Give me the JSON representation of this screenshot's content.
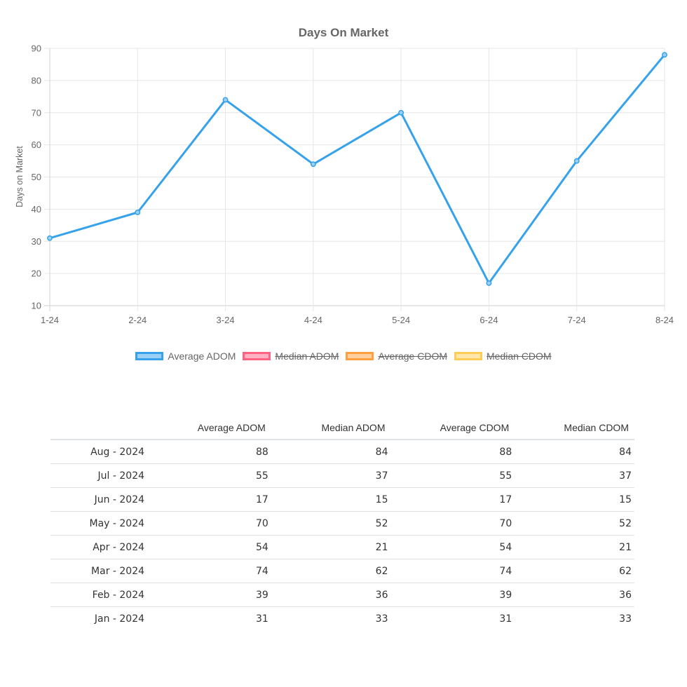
{
  "chart_data": {
    "type": "line",
    "title": "Days On Market",
    "ylabel": "Days on Market",
    "xlabel": "",
    "categories": [
      "1-24",
      "2-24",
      "3-24",
      "4-24",
      "5-24",
      "6-24",
      "7-24",
      "8-24"
    ],
    "ylim": [
      10,
      90
    ],
    "yticks": [
      "10",
      "20",
      "30",
      "40",
      "50",
      "60",
      "70",
      "80",
      "90"
    ],
    "grid": true,
    "legend_position": "bottom",
    "series": [
      {
        "name": "Average ADOM",
        "values": [
          31,
          39,
          74,
          54,
          70,
          17,
          55,
          88
        ],
        "color": "#36a2eb",
        "fill": "#9ad0f5",
        "hidden": false
      },
      {
        "name": "Median ADOM",
        "values": [
          33,
          36,
          62,
          21,
          52,
          15,
          37,
          84
        ],
        "color": "#ff6384",
        "fill": "#ffb1c1",
        "hidden": true
      },
      {
        "name": "Average CDOM",
        "values": [
          31,
          39,
          74,
          54,
          70,
          17,
          55,
          88
        ],
        "color": "#ff9f40",
        "fill": "#ffcf9f",
        "hidden": true
      },
      {
        "name": "Median CDOM",
        "values": [
          33,
          36,
          62,
          21,
          52,
          15,
          37,
          84
        ],
        "color": "#ffcd56",
        "fill": "#ffe6aa",
        "hidden": true
      }
    ]
  },
  "table": {
    "headers": [
      "",
      "Average ADOM",
      "Median ADOM",
      "Average CDOM",
      "Median CDOM"
    ],
    "rows": [
      [
        "Aug - 2024",
        "88",
        "84",
        "88",
        "84"
      ],
      [
        "Jul - 2024",
        "55",
        "37",
        "55",
        "37"
      ],
      [
        "Jun - 2024",
        "17",
        "15",
        "17",
        "15"
      ],
      [
        "May - 2024",
        "70",
        "52",
        "70",
        "52"
      ],
      [
        "Apr - 2024",
        "54",
        "21",
        "54",
        "21"
      ],
      [
        "Mar - 2024",
        "74",
        "62",
        "74",
        "62"
      ],
      [
        "Feb - 2024",
        "39",
        "36",
        "39",
        "36"
      ],
      [
        "Jan - 2024",
        "31",
        "33",
        "31",
        "33"
      ]
    ]
  }
}
